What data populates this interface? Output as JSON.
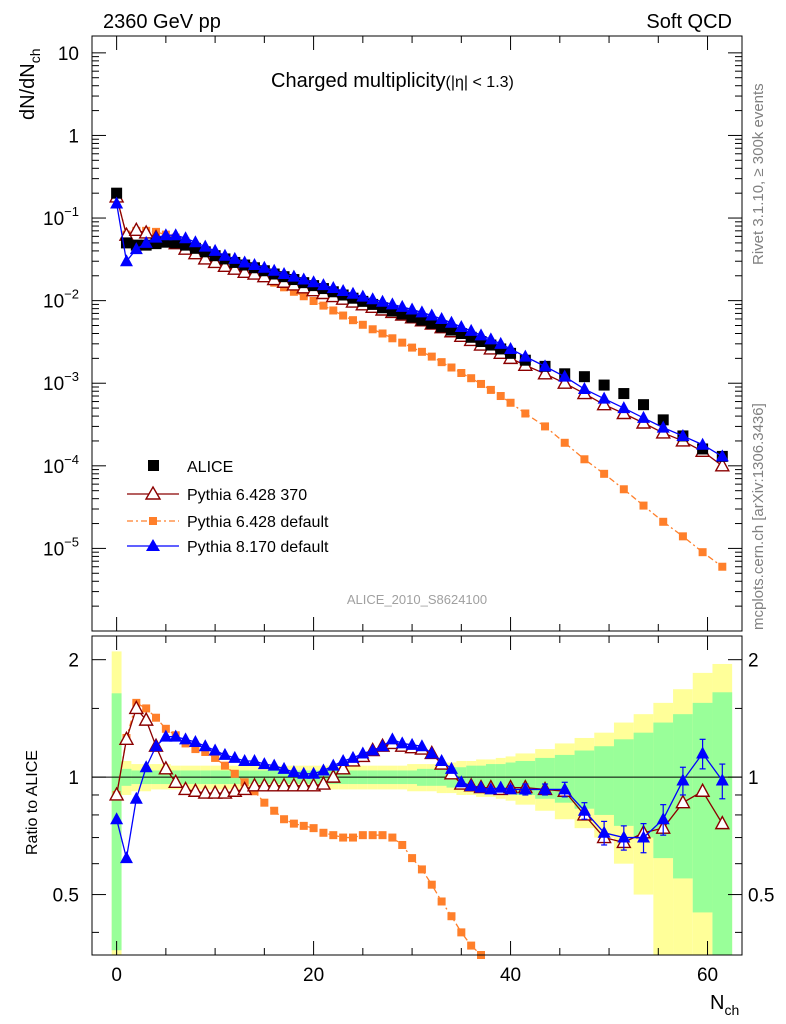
{
  "header": {
    "left": "2360 GeV pp",
    "right": "Soft QCD"
  },
  "side": {
    "top": "Rivet 3.1.10, ≥ 300k events",
    "bottom": "mcplots.cern.ch [arXiv:1306.3436]"
  },
  "colors": {
    "alice": "#000000",
    "pythia6_370": "#8b0000",
    "pythia6_default": "#ff7f2a",
    "pythia8": "#0000ff",
    "band_inner": "#99ff99",
    "band_outer": "#ffff99"
  },
  "chart_data": [
    {
      "type": "scatter",
      "title": "Charged multiplicity",
      "title_suffix": "(|η| < 1.3)",
      "ylabel": "dN/dN",
      "ylabel_sub": "ch",
      "y_scale": "log",
      "ylim": [
        1e-06,
        16
      ],
      "xlim": [
        -2.5,
        63.5
      ],
      "y_ticks": [
        {
          "value": 10,
          "base": "10",
          "exp": ""
        },
        {
          "value": 1,
          "base": "1",
          "exp": ""
        },
        {
          "value": 0.1,
          "base": "10",
          "exp": "−1"
        },
        {
          "value": 0.01,
          "base": "10",
          "exp": "−2"
        },
        {
          "value": 0.001,
          "base": "10",
          "exp": "−3"
        },
        {
          "value": 0.0001,
          "base": "10",
          "exp": "−4"
        },
        {
          "value": 1e-05,
          "base": "10",
          "exp": "−5"
        }
      ],
      "watermark": "ALICE_2010_S8624100",
      "legend_position": "bottom-left",
      "series": [
        {
          "name": "ALICE",
          "marker": "square",
          "x": [
            0,
            1,
            2,
            3,
            4,
            5,
            6,
            7,
            8,
            9,
            10,
            11,
            12,
            13,
            14,
            15,
            16,
            17,
            18,
            19,
            20,
            21,
            22,
            23,
            24,
            25,
            26,
            27,
            28,
            29,
            30,
            31,
            32,
            33,
            34,
            35,
            36,
            37,
            38,
            39,
            40,
            41.5,
            43.5,
            45.5,
            47.5,
            49.5,
            51.5,
            53.5,
            55.5,
            57.5,
            59.5,
            61.5
          ],
          "y": [
            0.2,
            0.05,
            0.047,
            0.047,
            0.049,
            0.051,
            0.05,
            0.047,
            0.043,
            0.039,
            0.035,
            0.032,
            0.029,
            0.027,
            0.025,
            0.023,
            0.021,
            0.0195,
            0.018,
            0.0165,
            0.0152,
            0.014,
            0.0128,
            0.0117,
            0.0107,
            0.0098,
            0.009,
            0.0082,
            0.0075,
            0.0069,
            0.0063,
            0.0058,
            0.0053,
            0.0048,
            0.0044,
            0.004,
            0.0036,
            0.0032,
            0.0029,
            0.0026,
            0.0023,
            0.0019,
            0.0016,
            0.0013,
            0.0012,
            0.00095,
            0.00075,
            0.00055,
            0.00036,
            0.00023,
            0.00016,
            0.00013
          ]
        },
        {
          "name": "Pythia 6.428 370",
          "marker": "triangle-open",
          "x": [
            0,
            1,
            2,
            3,
            4,
            5,
            6,
            7,
            8,
            9,
            10,
            11,
            12,
            13,
            14,
            15,
            16,
            17,
            18,
            19,
            20,
            21,
            22,
            23,
            24,
            25,
            26,
            27,
            28,
            29,
            30,
            31,
            32,
            33,
            34,
            35,
            36,
            37,
            38,
            39,
            40,
            41.5,
            43.5,
            45.5,
            47.5,
            49.5,
            51.5,
            53.5,
            55.5,
            57.5,
            59.5,
            61.5
          ],
          "y": [
            0.18,
            0.062,
            0.071,
            0.066,
            0.058,
            0.054,
            0.049,
            0.042,
            0.037,
            0.032,
            0.029,
            0.026,
            0.024,
            0.022,
            0.021,
            0.0195,
            0.018,
            0.0167,
            0.0155,
            0.0143,
            0.0132,
            0.0122,
            0.0112,
            0.0104,
            0.0096,
            0.0089,
            0.0083,
            0.0077,
            0.0072,
            0.0067,
            0.0062,
            0.0057,
            0.0052,
            0.0047,
            0.0042,
            0.0037,
            0.0033,
            0.0029,
            0.0026,
            0.0023,
            0.002,
            0.00165,
            0.0013,
            0.001,
            0.00075,
            0.00055,
            0.00043,
            0.00033,
            0.00025,
            0.0002,
            0.00015,
            0.0001
          ]
        },
        {
          "name": "Pythia 6.428 default",
          "marker": "square-small",
          "x": [
            0,
            1,
            2,
            3,
            4,
            5,
            6,
            7,
            8,
            9,
            10,
            11,
            12,
            13,
            14,
            15,
            16,
            17,
            18,
            19,
            20,
            21,
            22,
            23,
            24,
            25,
            26,
            27,
            28,
            29,
            30,
            31,
            32,
            33,
            34,
            35,
            36,
            37,
            38,
            39,
            40,
            41.5,
            43.5,
            45.5,
            47.5,
            49.5,
            51.5,
            53.5,
            55.5,
            57.5,
            59.5,
            61.5
          ],
          "y": [
            0.18,
            0.063,
            0.07,
            0.07,
            0.068,
            0.063,
            0.058,
            0.052,
            0.046,
            0.041,
            0.036,
            0.032,
            0.028,
            0.025,
            0.022,
            0.019,
            0.0165,
            0.0145,
            0.0128,
            0.0113,
            0.0099,
            0.0087,
            0.0076,
            0.0066,
            0.0058,
            0.0051,
            0.0045,
            0.004,
            0.0035,
            0.0031,
            0.0027,
            0.0024,
            0.0021,
            0.0018,
            0.00155,
            0.00133,
            0.00115,
            0.00098,
            0.00083,
            0.0007,
            0.00058,
            0.00043,
            0.0003,
            0.00019,
            0.00012,
            8e-05,
            5.2e-05,
            3.3e-05,
            2.1e-05,
            1.4e-05,
            9e-06,
            6e-06
          ]
        },
        {
          "name": "Pythia 8.170 default",
          "marker": "triangle",
          "x": [
            0,
            1,
            2,
            3,
            4,
            5,
            6,
            7,
            8,
            9,
            10,
            11,
            12,
            13,
            14,
            15,
            16,
            17,
            18,
            19,
            20,
            21,
            22,
            23,
            24,
            25,
            26,
            27,
            28,
            29,
            30,
            31,
            32,
            33,
            34,
            35,
            36,
            37,
            38,
            39,
            40,
            41.5,
            43.5,
            45.5,
            47.5,
            49.5,
            51.5,
            53.5,
            55.5,
            57.5,
            59.5,
            61.5
          ],
          "y": [
            0.15,
            0.03,
            0.042,
            0.05,
            0.058,
            0.062,
            0.062,
            0.057,
            0.051,
            0.045,
            0.04,
            0.035,
            0.032,
            0.029,
            0.027,
            0.025,
            0.023,
            0.021,
            0.0195,
            0.018,
            0.0167,
            0.0154,
            0.0142,
            0.0131,
            0.0121,
            0.0112,
            0.0104,
            0.0097,
            0.009,
            0.0084,
            0.0078,
            0.0072,
            0.0066,
            0.006,
            0.0054,
            0.0048,
            0.0043,
            0.0038,
            0.0034,
            0.003,
            0.0026,
            0.0021,
            0.0016,
            0.0012,
            0.00085,
            0.00065,
            0.0005,
            0.00038,
            0.00029,
            0.00023,
            0.00018,
            0.00013
          ]
        }
      ]
    },
    {
      "type": "scatter",
      "ylabel": "Ratio to ALICE",
      "xlabel": "N",
      "xlabel_sub": "ch",
      "xlim": [
        -2.5,
        63.5
      ],
      "ylim": [
        0.35,
        2.3
      ],
      "y_scale": "log",
      "x_ticks": [
        0,
        20,
        40,
        60
      ],
      "y_ticks": [
        0.5,
        1,
        2
      ],
      "reference": 1,
      "band_x_edges": [
        -0.5,
        0.5,
        1.5,
        2.5,
        3.5,
        4.5,
        5.5,
        6.5,
        7.5,
        8.5,
        9.5,
        10.5,
        11.5,
        12.5,
        13.5,
        14.5,
        15.5,
        16.5,
        17.5,
        18.5,
        19.5,
        20.5,
        21.5,
        22.5,
        23.5,
        24.5,
        25.5,
        26.5,
        27.5,
        28.5,
        29.5,
        30.5,
        31.5,
        32.5,
        33.5,
        34.5,
        35.5,
        36.5,
        37.5,
        38.5,
        39.5,
        40.5,
        42.5,
        44.5,
        46.5,
        48.5,
        50.5,
        52.5,
        54.5,
        56.5,
        58.5,
        60.5,
        62.5
      ],
      "band_inner_up": [
        1.64,
        1.05,
        1.04,
        1.04,
        1.04,
        1.04,
        1.04,
        1.04,
        1.04,
        1.04,
        1.04,
        1.04,
        1.04,
        1.04,
        1.04,
        1.04,
        1.04,
        1.04,
        1.04,
        1.04,
        1.04,
        1.04,
        1.04,
        1.04,
        1.04,
        1.04,
        1.04,
        1.04,
        1.04,
        1.04,
        1.04,
        1.05,
        1.05,
        1.05,
        1.06,
        1.06,
        1.07,
        1.07,
        1.08,
        1.08,
        1.09,
        1.1,
        1.12,
        1.14,
        1.17,
        1.2,
        1.25,
        1.3,
        1.38,
        1.45,
        1.55,
        1.65
      ],
      "band_inner_dn": [
        0.36,
        0.95,
        0.96,
        0.96,
        0.96,
        0.96,
        0.96,
        0.96,
        0.96,
        0.96,
        0.96,
        0.96,
        0.96,
        0.96,
        0.96,
        0.96,
        0.96,
        0.96,
        0.96,
        0.96,
        0.96,
        0.96,
        0.96,
        0.96,
        0.96,
        0.96,
        0.96,
        0.96,
        0.96,
        0.96,
        0.96,
        0.95,
        0.95,
        0.95,
        0.94,
        0.94,
        0.93,
        0.93,
        0.92,
        0.92,
        0.91,
        0.9,
        0.88,
        0.86,
        0.83,
        0.8,
        0.75,
        0.7,
        0.62,
        0.55,
        0.45,
        0.35
      ],
      "band_outer_up": [
        2.1,
        1.1,
        1.08,
        1.08,
        1.08,
        1.08,
        1.07,
        1.07,
        1.07,
        1.07,
        1.07,
        1.07,
        1.07,
        1.07,
        1.07,
        1.07,
        1.07,
        1.07,
        1.07,
        1.07,
        1.07,
        1.07,
        1.07,
        1.07,
        1.07,
        1.07,
        1.07,
        1.07,
        1.07,
        1.07,
        1.08,
        1.08,
        1.08,
        1.09,
        1.09,
        1.1,
        1.1,
        1.11,
        1.11,
        1.12,
        1.13,
        1.15,
        1.18,
        1.22,
        1.26,
        1.3,
        1.38,
        1.45,
        1.55,
        1.68,
        1.85,
        1.95
      ],
      "band_outer_dn": [
        0.35,
        0.9,
        0.92,
        0.92,
        0.93,
        0.93,
        0.93,
        0.93,
        0.93,
        0.93,
        0.93,
        0.93,
        0.93,
        0.93,
        0.93,
        0.93,
        0.93,
        0.93,
        0.93,
        0.93,
        0.93,
        0.93,
        0.93,
        0.93,
        0.93,
        0.93,
        0.93,
        0.93,
        0.93,
        0.93,
        0.92,
        0.92,
        0.92,
        0.91,
        0.91,
        0.9,
        0.9,
        0.89,
        0.89,
        0.88,
        0.87,
        0.85,
        0.82,
        0.78,
        0.74,
        0.7,
        0.6,
        0.5,
        0.35,
        0.35,
        0.35,
        0.35
      ],
      "series": [
        {
          "name": "Pythia 6.428 370",
          "marker": "triangle-open",
          "x": [
            0,
            1,
            2,
            3,
            4,
            5,
            6,
            7,
            8,
            9,
            10,
            11,
            12,
            13,
            14,
            15,
            16,
            17,
            18,
            19,
            20,
            21,
            22,
            23,
            24,
            25,
            26,
            27,
            28,
            29,
            30,
            31,
            32,
            33,
            34,
            35,
            36,
            37,
            38,
            39,
            40,
            41.5,
            43.5,
            45.5,
            47.5,
            49.5,
            51.5,
            53.5,
            55.5,
            57.5,
            59.5,
            61.5
          ],
          "y": [
            0.9,
            1.25,
            1.5,
            1.4,
            1.2,
            1.05,
            0.97,
            0.93,
            0.92,
            0.91,
            0.91,
            0.91,
            0.92,
            0.93,
            0.95,
            0.95,
            0.95,
            0.95,
            0.95,
            0.95,
            0.95,
            0.96,
            1.0,
            1.05,
            1.1,
            1.13,
            1.17,
            1.2,
            1.22,
            1.2,
            1.19,
            1.18,
            1.15,
            1.08,
            1.02,
            0.96,
            0.95,
            0.94,
            0.94,
            0.93,
            0.94,
            0.94,
            0.93,
            0.92,
            0.8,
            0.7,
            0.68,
            0.72,
            0.74,
            0.86,
            0.92,
            0.76
          ],
          "err": []
        },
        {
          "name": "Pythia 6.428 default",
          "marker": "square-small",
          "x": [
            0,
            1,
            2,
            3,
            4,
            5,
            6,
            7,
            8,
            9,
            10,
            11,
            12,
            13,
            14,
            15,
            16,
            17,
            18,
            19,
            20,
            21,
            22,
            23,
            24,
            25,
            26,
            27,
            28,
            29,
            30,
            31,
            32,
            33,
            34,
            35,
            36,
            37
          ],
          "y": [
            0.9,
            1.26,
            1.55,
            1.5,
            1.42,
            1.33,
            1.28,
            1.22,
            1.18,
            1.16,
            1.12,
            1.07,
            1.02,
            0.97,
            0.92,
            0.86,
            0.82,
            0.78,
            0.76,
            0.75,
            0.74,
            0.72,
            0.71,
            0.7,
            0.7,
            0.71,
            0.71,
            0.71,
            0.7,
            0.67,
            0.62,
            0.58,
            0.53,
            0.48,
            0.44,
            0.4,
            0.37,
            0.35
          ],
          "err": []
        },
        {
          "name": "Pythia 8.170 default",
          "marker": "triangle",
          "x": [
            0,
            1,
            2,
            3,
            4,
            5,
            6,
            7,
            8,
            9,
            10,
            11,
            12,
            13,
            14,
            15,
            16,
            17,
            18,
            19,
            20,
            21,
            22,
            23,
            24,
            25,
            26,
            27,
            28,
            29,
            30,
            31,
            32,
            33,
            34,
            35,
            36,
            37,
            38,
            39,
            40,
            41.5,
            43.5,
            45.5,
            47.5,
            49.5,
            51.5,
            53.5,
            55.5,
            57.5,
            59.5,
            61.5
          ],
          "y": [
            0.78,
            0.62,
            0.88,
            1.06,
            1.2,
            1.27,
            1.27,
            1.25,
            1.23,
            1.2,
            1.17,
            1.14,
            1.12,
            1.1,
            1.1,
            1.08,
            1.07,
            1.05,
            1.03,
            1.02,
            1.02,
            1.04,
            1.07,
            1.1,
            1.12,
            1.15,
            1.17,
            1.2,
            1.25,
            1.22,
            1.21,
            1.2,
            1.15,
            1.1,
            1.05,
            0.97,
            0.95,
            0.94,
            0.93,
            0.94,
            0.93,
            0.93,
            0.93,
            0.93,
            0.82,
            0.72,
            0.7,
            0.7,
            0.78,
            0.98,
            1.15,
            0.98
          ],
          "err": [
            0,
            0,
            0,
            0,
            0,
            0,
            0,
            0,
            0,
            0,
            0,
            0,
            0,
            0,
            0,
            0,
            0,
            0,
            0,
            0,
            0,
            0,
            0,
            0,
            0,
            0,
            0,
            0,
            0,
            0,
            0,
            0,
            0,
            0,
            0,
            0,
            0,
            0,
            0,
            0,
            0.02,
            0.03,
            0.03,
            0.04,
            0.04,
            0.05,
            0.05,
            0.06,
            0.07,
            0.08,
            0.1,
            0.1
          ]
        }
      ]
    }
  ]
}
